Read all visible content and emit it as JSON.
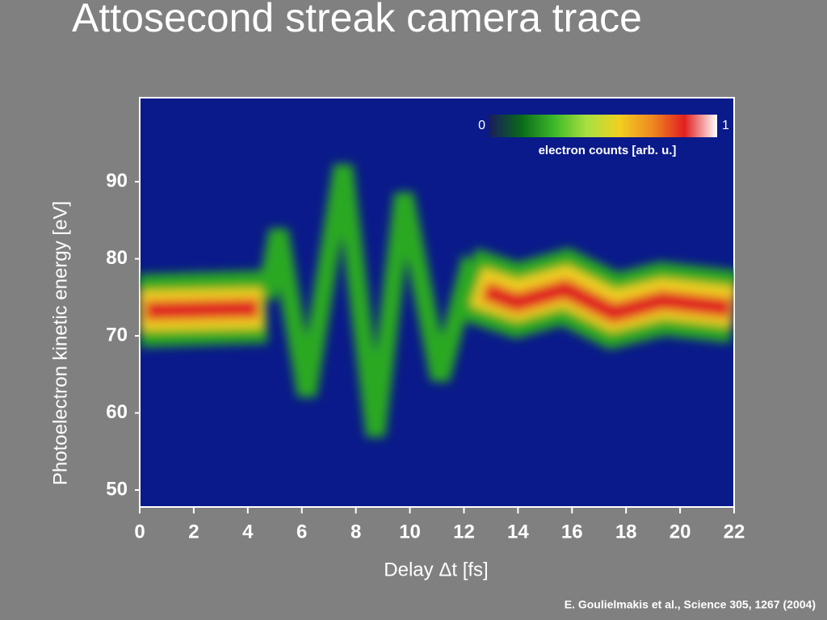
{
  "chart_data": {
    "type": "heatmap",
    "title": "Attosecond streak camera trace",
    "x_label": "Delay Δt [fs]",
    "y_label": "Photoelectron kinetic energy [eV]",
    "xlim": [
      0,
      22
    ],
    "xticks": [
      0,
      2,
      4,
      6,
      8,
      10,
      12,
      14,
      16,
      18,
      20,
      22
    ],
    "ylim": [
      47.8,
      100.9
    ],
    "yticks": [
      50,
      60,
      70,
      80,
      90
    ],
    "colorbar": {
      "label": "electron counts [arb. u.]",
      "lim": [
        0,
        1
      ],
      "ticks": [
        0,
        1
      ],
      "colors": [
        "#1a1a5e",
        "#0a6a1a",
        "#3cb828",
        "#a8e040",
        "#f0d020",
        "#f08a20",
        "#e02020",
        "#ffffff"
      ]
    },
    "source": "E. Goulielmakis et al., Science 305, 1267 (2004)"
  }
}
